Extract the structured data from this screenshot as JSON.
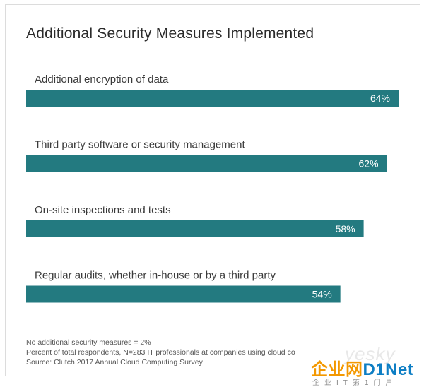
{
  "chart_data": {
    "type": "bar",
    "orientation": "horizontal",
    "title": "Additional Security Measures Implemented",
    "categories": [
      "Additional encryption of data",
      "Third party software or security management",
      "On-site inspections and tests",
      "Regular audits, whether in-house or by a third party"
    ],
    "values": [
      64,
      62,
      58,
      54
    ],
    "value_labels": [
      "64%",
      "62%",
      "58%",
      "54%"
    ],
    "unit": "%",
    "xlim": [
      0,
      64
    ],
    "grid": false,
    "bar_color": "#237a80"
  },
  "footnotes": {
    "line1": "No additional security measures = 2%",
    "line2": "Percent of total respondents,  N=283 IT professionals at companies using cloud co",
    "line3": "Source: Clutch 2017 Annual Cloud Computing Survey"
  },
  "watermark": {
    "latin": "yesky",
    "brand_cn": "企业网",
    "brand_en": "D1Net",
    "slogan": "企业IT第1门户"
  }
}
